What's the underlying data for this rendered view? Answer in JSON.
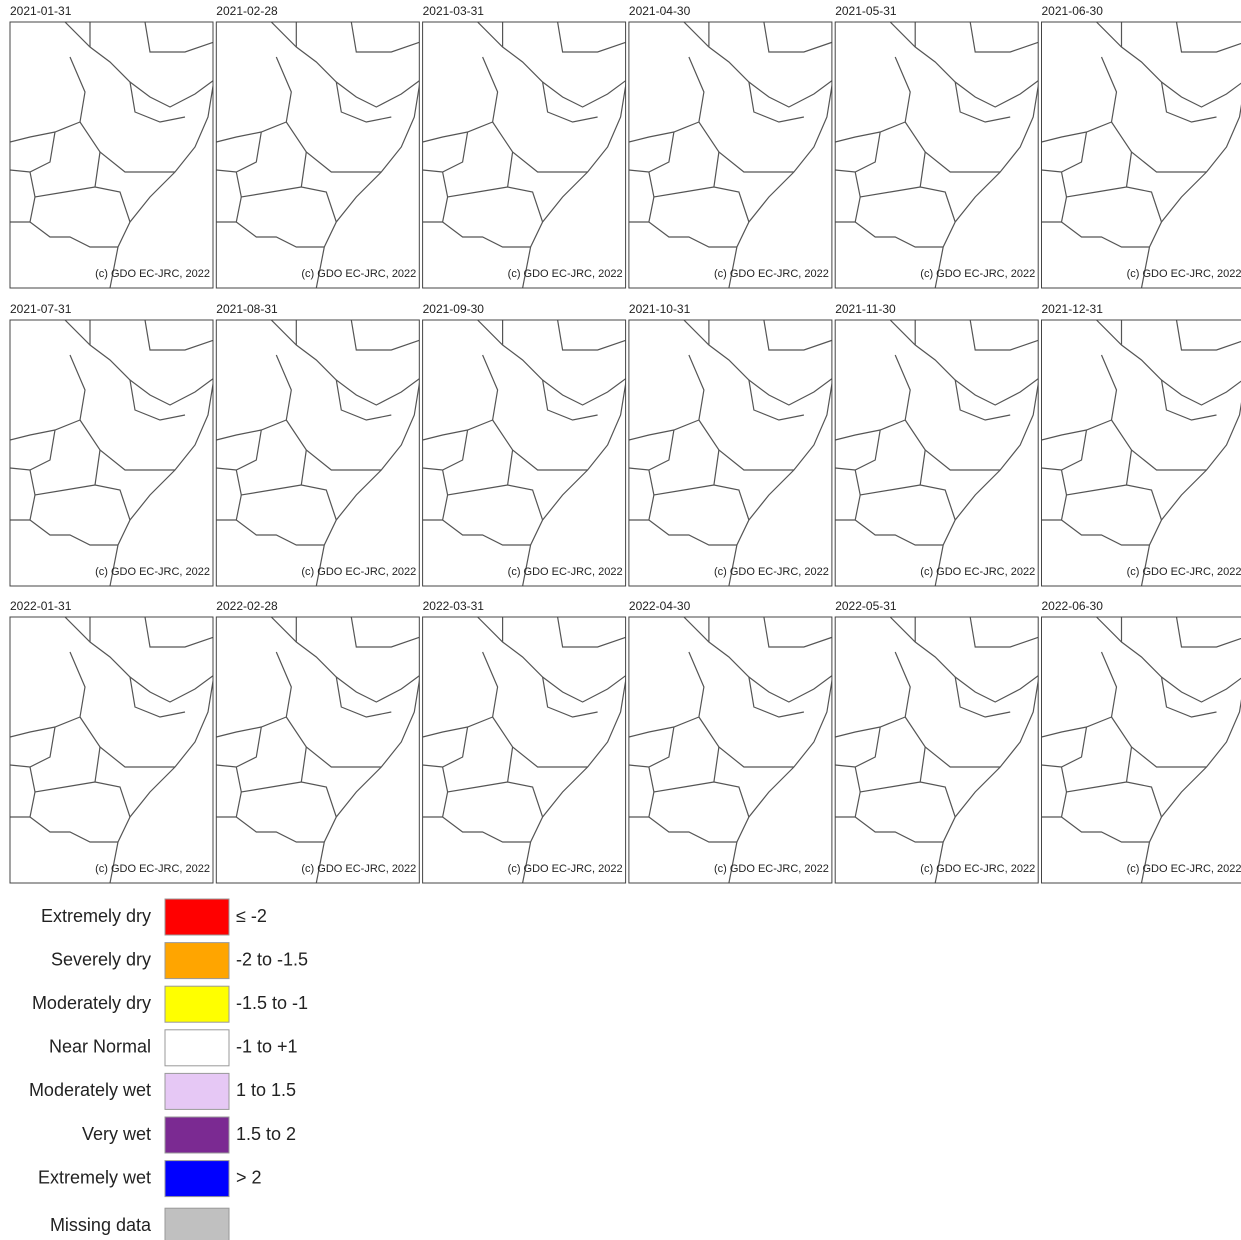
{
  "panels": [
    {
      "date": "2021-01-31"
    },
    {
      "date": "2021-02-28"
    },
    {
      "date": "2021-03-31"
    },
    {
      "date": "2021-04-30"
    },
    {
      "date": "2021-05-31"
    },
    {
      "date": "2021-06-30"
    },
    {
      "date": "2021-07-31"
    },
    {
      "date": "2021-08-31"
    },
    {
      "date": "2021-09-30"
    },
    {
      "date": "2021-10-31"
    },
    {
      "date": "2021-11-30"
    },
    {
      "date": "2021-12-31"
    },
    {
      "date": "2022-01-31"
    },
    {
      "date": "2022-02-28"
    },
    {
      "date": "2022-03-31"
    },
    {
      "date": "2022-04-30"
    },
    {
      "date": "2022-05-31"
    },
    {
      "date": "2022-06-30"
    }
  ],
  "credit": "(c) GDO EC-JRC, 2022",
  "legend": [
    {
      "label": "Extremely dry",
      "range": "≤ -2",
      "color": "#ff0000"
    },
    {
      "label": "Severely dry",
      "range": "-2 to -1.5",
      "color": "#ffa500"
    },
    {
      "label": "Moderately dry",
      "range": "-1.5 to -1",
      "color": "#ffff00"
    },
    {
      "label": "Near Normal",
      "range": "-1 to +1",
      "color": "#ffffff"
    },
    {
      "label": "Moderately wet",
      "range": "1 to 1.5",
      "color": "#e6c8f5"
    },
    {
      "label": "Very wet",
      "range": "1.5 to 2",
      "color": "#7b2a92"
    },
    {
      "label": "Extremely wet",
      "range": "> 2",
      "color": "#0000ff"
    },
    {
      "label": "Missing data",
      "range": null,
      "color": "#c0c0c0"
    }
  ]
}
